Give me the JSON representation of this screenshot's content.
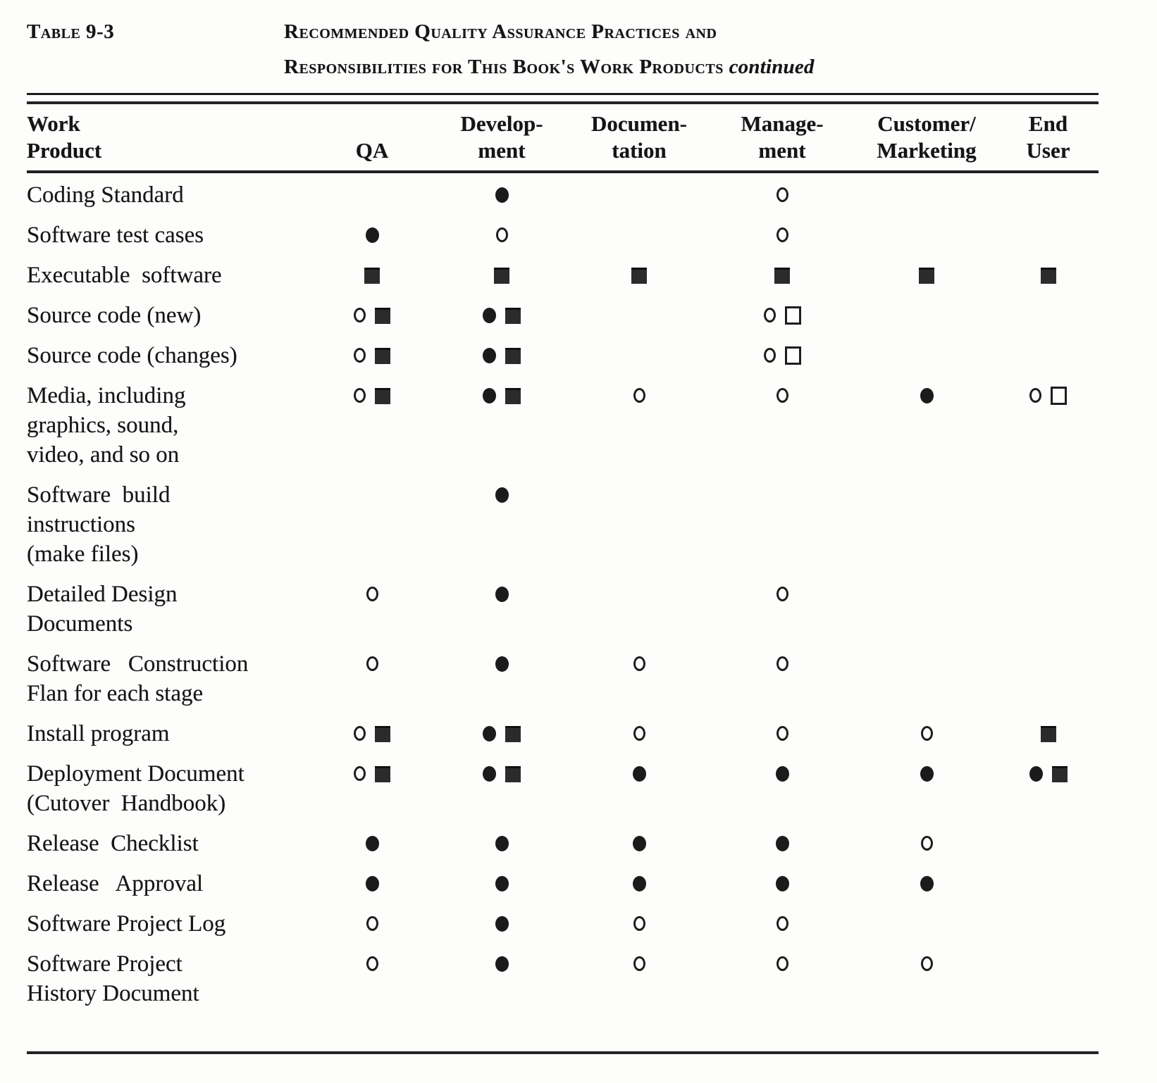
{
  "page": {
    "table_label": "Table 9-3",
    "title_line1": "Recommended Quality Assurance Practices and",
    "title_line2": "Responsibilities for This Book's Work Products",
    "title_continued": "continued"
  },
  "colors": {
    "ink": "#1b1b1b",
    "background": "#fdfdfc"
  },
  "columns": [
    {
      "key": "work_product",
      "label": "Work\nProduct"
    },
    {
      "key": "qa",
      "label": "QA"
    },
    {
      "key": "development",
      "label": "Develop-\nment"
    },
    {
      "key": "documentation",
      "label": "Documen-\ntation"
    },
    {
      "key": "management",
      "label": "Manage-\nment"
    },
    {
      "key": "customer_marketing",
      "label": "Customer/\nMarketing"
    },
    {
      "key": "end_user",
      "label": "End\nUser"
    }
  ],
  "symbol_legend": {
    "open-circle": "open circle marker",
    "filled-circle": "filled circle marker",
    "filled-square": "filled square marker",
    "open-square": "open square marker"
  },
  "rows": [
    {
      "label": "Coding Standard",
      "cells": [
        [],
        [
          "filled-circle"
        ],
        [],
        [
          "open-circle"
        ],
        [],
        []
      ]
    },
    {
      "label": "Software test cases",
      "cells": [
        [
          "filled-circle"
        ],
        [
          "open-circle"
        ],
        [],
        [
          "open-circle"
        ],
        [],
        []
      ]
    },
    {
      "label": "Executable  software",
      "cells": [
        [
          "filled-square"
        ],
        [
          "filled-square"
        ],
        [
          "filled-square"
        ],
        [
          "filled-square"
        ],
        [
          "filled-square"
        ],
        [
          "filled-square"
        ]
      ]
    },
    {
      "label": "Source code (new)",
      "cells": [
        [
          "open-circle",
          "filled-square"
        ],
        [
          "filled-circle",
          "filled-square"
        ],
        [],
        [
          "open-circle",
          "open-square"
        ],
        [],
        []
      ]
    },
    {
      "label": "Source code (changes)",
      "cells": [
        [
          "open-circle",
          "filled-square"
        ],
        [
          "filled-circle",
          "filled-square"
        ],
        [],
        [
          "open-circle",
          "open-square"
        ],
        [],
        []
      ]
    },
    {
      "label": "Media, including\ngraphics, sound,\nvideo, and so on",
      "cells": [
        [
          "open-circle",
          "filled-square"
        ],
        [
          "filled-circle",
          "filled-square"
        ],
        [
          "open-circle"
        ],
        [
          "open-circle"
        ],
        [
          "filled-circle"
        ],
        [
          "open-circle",
          "open-square"
        ]
      ]
    },
    {
      "label": "Software  build\ninstructions\n(make files)",
      "cells": [
        [],
        [
          "filled-circle"
        ],
        [],
        [],
        [],
        []
      ]
    },
    {
      "label": "Detailed Design\nDocuments",
      "cells": [
        [
          "open-circle"
        ],
        [
          "filled-circle"
        ],
        [],
        [
          "open-circle"
        ],
        [],
        []
      ]
    },
    {
      "label": "Software   Construction\nFlan for each stage",
      "cells": [
        [
          "open-circle"
        ],
        [
          "filled-circle"
        ],
        [
          "open-circle"
        ],
        [
          "open-circle"
        ],
        [],
        []
      ]
    },
    {
      "label": "Install program",
      "cells": [
        [
          "open-circle",
          "filled-square"
        ],
        [
          "filled-circle",
          "filled-square"
        ],
        [
          "open-circle"
        ],
        [
          "open-circle"
        ],
        [
          "open-circle"
        ],
        [
          "filled-square"
        ]
      ]
    },
    {
      "label": "Deployment Document\n(Cutover  Handbook)",
      "cells": [
        [
          "open-circle",
          "filled-square"
        ],
        [
          "filled-circle",
          "filled-square"
        ],
        [
          "filled-circle"
        ],
        [
          "filled-circle"
        ],
        [
          "filled-circle"
        ],
        [
          "filled-circle",
          "filled-square"
        ]
      ]
    },
    {
      "label": "Release  Checklist",
      "cells": [
        [
          "filled-circle"
        ],
        [
          "filled-circle"
        ],
        [
          "filled-circle"
        ],
        [
          "filled-circle"
        ],
        [
          "open-circle"
        ],
        []
      ]
    },
    {
      "label": "Release   Approval",
      "cells": [
        [
          "filled-circle"
        ],
        [
          "filled-circle"
        ],
        [
          "filled-circle"
        ],
        [
          "filled-circle"
        ],
        [
          "filled-circle"
        ],
        []
      ]
    },
    {
      "label": "Software Project Log",
      "cells": [
        [
          "open-circle"
        ],
        [
          "filled-circle"
        ],
        [
          "open-circle"
        ],
        [
          "open-circle"
        ],
        [],
        []
      ]
    },
    {
      "label": "Software Project\nHistory Document",
      "cells": [
        [
          "open-circle"
        ],
        [
          "filled-circle"
        ],
        [
          "open-circle"
        ],
        [
          "open-circle"
        ],
        [
          "open-circle"
        ],
        []
      ]
    }
  ]
}
